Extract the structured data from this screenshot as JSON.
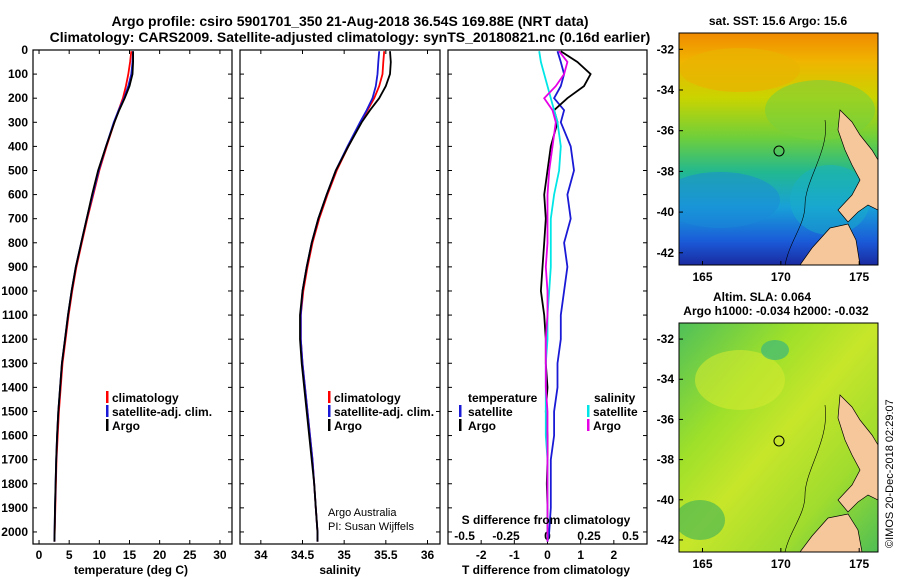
{
  "header": {
    "line1": "Argo profile: csiro 5901701_350 21-Aug-2018 36.54S 169.88E (NRT data)",
    "line2": "Climatology: CARS2009. Satellite-adjusted climatology: synTS_20180821.nc (0.16d earlier)"
  },
  "colors": {
    "argo": "#000000",
    "climatology": "#ff0000",
    "satellite_adj": "#1a1ad6",
    "salinity_satellite": "#00e6e6",
    "salinity_argo": "#e600e6",
    "land": "#f7c79c"
  },
  "chart_data": [
    {
      "type": "line",
      "panel": "temperature",
      "xlabel": "temperature (deg C)",
      "xlim": [
        -1,
        32
      ],
      "x_ticks": [
        "0",
        "5",
        "10",
        "15",
        "20",
        "25",
        "30"
      ],
      "y_ticks": [
        "0",
        "100",
        "200",
        "300",
        "400",
        "500",
        "600",
        "700",
        "800",
        "900",
        "1000",
        "1100",
        "1200",
        "1300",
        "1400",
        "1500",
        "1600",
        "1700",
        "1800",
        "1900",
        "2000"
      ],
      "ylim": [
        2050,
        0
      ],
      "ylabel": "",
      "depth": [
        5,
        50,
        100,
        150,
        200,
        250,
        300,
        400,
        500,
        600,
        700,
        800,
        900,
        1000,
        1100,
        1200,
        1300,
        1400,
        1500,
        1600,
        1700,
        1800,
        1900,
        2000,
        2040
      ],
      "legend": [
        "climatology",
        "satellite-adj. clim.",
        "Argo"
      ],
      "series": [
        {
          "name": "climatology",
          "values": [
            15.3,
            15.1,
            14.8,
            14.4,
            13.9,
            13.2,
            12.5,
            11.2,
            10.0,
            9.0,
            8.0,
            7.1,
            6.2,
            5.5,
            4.9,
            4.4,
            3.9,
            3.6,
            3.3,
            3.1,
            2.9,
            2.8,
            2.7,
            2.6,
            2.55
          ]
        },
        {
          "name": "satellite-adj. clim.",
          "values": [
            15.6,
            15.5,
            15.3,
            14.8,
            14.1,
            13.2,
            12.4,
            11.1,
            9.9,
            8.9,
            7.9,
            7.0,
            6.1,
            5.4,
            4.8,
            4.3,
            3.8,
            3.5,
            3.2,
            3.0,
            2.85,
            2.75,
            2.65,
            2.58,
            2.55
          ]
        },
        {
          "name": "Argo",
          "values": [
            15.6,
            15.6,
            15.5,
            15.0,
            14.2,
            13.3,
            12.5,
            11.1,
            9.8,
            8.8,
            7.9,
            7.0,
            6.1,
            5.4,
            4.8,
            4.3,
            3.8,
            3.5,
            3.2,
            3.0,
            2.85,
            2.75,
            2.65,
            2.58,
            2.55
          ]
        }
      ]
    },
    {
      "type": "line",
      "panel": "salinity",
      "xlabel": "salinity",
      "xlim": [
        33.75,
        36.15
      ],
      "x_ticks": [
        "34",
        "34.5",
        "35",
        "35.5",
        "36"
      ],
      "ylim": [
        2050,
        0
      ],
      "depth": [
        5,
        50,
        100,
        150,
        200,
        250,
        300,
        400,
        500,
        600,
        700,
        800,
        900,
        1000,
        1100,
        1200,
        1300,
        1400,
        1500,
        1600,
        1700,
        1800,
        1900,
        2000,
        2040
      ],
      "legend": [
        "climatology",
        "satellite-adj. clim.",
        "Argo"
      ],
      "credit": [
        "Argo Australia",
        "PI: Susan Wijffels"
      ],
      "series": [
        {
          "name": "climatology",
          "values": [
            35.48,
            35.47,
            35.46,
            35.42,
            35.36,
            35.28,
            35.2,
            35.05,
            34.91,
            34.8,
            34.7,
            34.62,
            34.56,
            34.51,
            34.48,
            34.48,
            34.5,
            34.53,
            34.56,
            34.59,
            34.62,
            34.64,
            34.66,
            34.68,
            34.68
          ]
        },
        {
          "name": "satellite-adj. clim.",
          "values": [
            35.42,
            35.41,
            35.4,
            35.38,
            35.34,
            35.27,
            35.19,
            35.04,
            34.9,
            34.79,
            34.69,
            34.61,
            34.55,
            34.5,
            34.48,
            34.48,
            34.5,
            34.53,
            34.56,
            34.59,
            34.62,
            34.64,
            34.66,
            34.68,
            34.68
          ]
        },
        {
          "name": "Argo",
          "values": [
            35.55,
            35.56,
            35.55,
            35.5,
            35.42,
            35.31,
            35.21,
            35.05,
            34.9,
            34.79,
            34.69,
            34.61,
            34.55,
            34.5,
            34.47,
            34.47,
            34.49,
            34.52,
            34.55,
            34.58,
            34.61,
            34.64,
            34.66,
            34.68,
            34.68
          ]
        }
      ]
    },
    {
      "type": "line",
      "panel": "difference",
      "xlabel": "T difference from climatology",
      "secondary_xlabel": "S difference from climatology",
      "xlim": [
        -3,
        3
      ],
      "x_ticks": [
        "-2",
        "-1",
        "0",
        "1",
        "2"
      ],
      "secondary_x_ticks": [
        "-0.5",
        "-0.25",
        "0",
        "0.25",
        "0.5"
      ],
      "ylim": [
        2050,
        0
      ],
      "depth": [
        5,
        50,
        100,
        150,
        200,
        250,
        300,
        400,
        500,
        600,
        700,
        800,
        900,
        1000,
        1100,
        1200,
        1300,
        1400,
        1500,
        1600,
        1700,
        1800,
        1900,
        2000,
        2040
      ],
      "legend": {
        "temperature_heading": "temperature",
        "salinity_heading": "salinity",
        "temperature_items": [
          "satellite",
          "Argo"
        ],
        "salinity_items": [
          "satellite",
          "Argo"
        ]
      },
      "series": [
        {
          "name": "T satellite",
          "values": [
            0.3,
            0.4,
            0.5,
            0.4,
            0.2,
            0.5,
            0.4,
            0.7,
            0.8,
            0.6,
            0.7,
            0.5,
            0.6,
            0.5,
            0.4,
            0.4,
            0.3,
            0.3,
            0.2,
            0.2,
            0.1,
            0.1,
            0.1,
            0.05,
            0.0
          ]
        },
        {
          "name": "T Argo",
          "values": [
            0.4,
            0.9,
            1.3,
            1.1,
            0.6,
            0.2,
            0.3,
            0.1,
            0.0,
            -0.1,
            -0.05,
            -0.1,
            -0.15,
            -0.2,
            -0.1,
            -0.05,
            -0.05,
            0.0,
            -0.05,
            0.0,
            0.0,
            -0.02,
            0.0,
            0.0,
            0.0
          ]
        },
        {
          "name": "S satellite",
          "values": [
            -0.05,
            -0.04,
            -0.02,
            0.0,
            0.02,
            0.04,
            0.06,
            0.08,
            0.07,
            0.04,
            0.02,
            0.02,
            0.02,
            0.01,
            0.0,
            0.0,
            -0.01,
            -0.01,
            -0.01,
            -0.01,
            0.0,
            0.0,
            0.0,
            0.0,
            0.0
          ]
        },
        {
          "name": "S Argo",
          "values": [
            0.07,
            0.12,
            0.1,
            0.05,
            -0.02,
            0.03,
            0.05,
            0.03,
            0.01,
            0.0,
            0.0,
            0.0,
            -0.01,
            0.0,
            0.0,
            -0.01,
            -0.01,
            -0.01,
            0.0,
            0.0,
            0.0,
            0.0,
            0.0,
            0.0,
            0.0
          ]
        }
      ]
    },
    {
      "type": "heatmap",
      "panel": "sst_map",
      "title": "sat. SST: 15.6 Argo: 15.6",
      "xlim": [
        163.5,
        176.2
      ],
      "ylim": [
        -42.6,
        -31.2
      ],
      "x_ticks": [
        "165",
        "170",
        "175"
      ],
      "y_ticks": [
        "-32",
        "-34",
        "-36",
        "-38",
        "-40",
        "-42"
      ],
      "marker": {
        "lon": 169.88,
        "lat": -36.54
      }
    },
    {
      "type": "heatmap",
      "panel": "sla_map",
      "title_line1": "Altim. SLA: 0.064",
      "title_line2": "Argo h1000: -0.034 h2000: -0.032",
      "xlim": [
        163.5,
        176.2
      ],
      "ylim": [
        -42.6,
        -31.2
      ],
      "x_ticks": [
        "165",
        "170",
        "175"
      ],
      "y_ticks": [
        "-32",
        "-34",
        "-36",
        "-38",
        "-40",
        "-42"
      ],
      "marker": {
        "lon": 169.88,
        "lat": -36.54
      }
    }
  ],
  "footer": {
    "credit_vertical": "©IMOS 20-Dec-2018 02:29:07"
  }
}
